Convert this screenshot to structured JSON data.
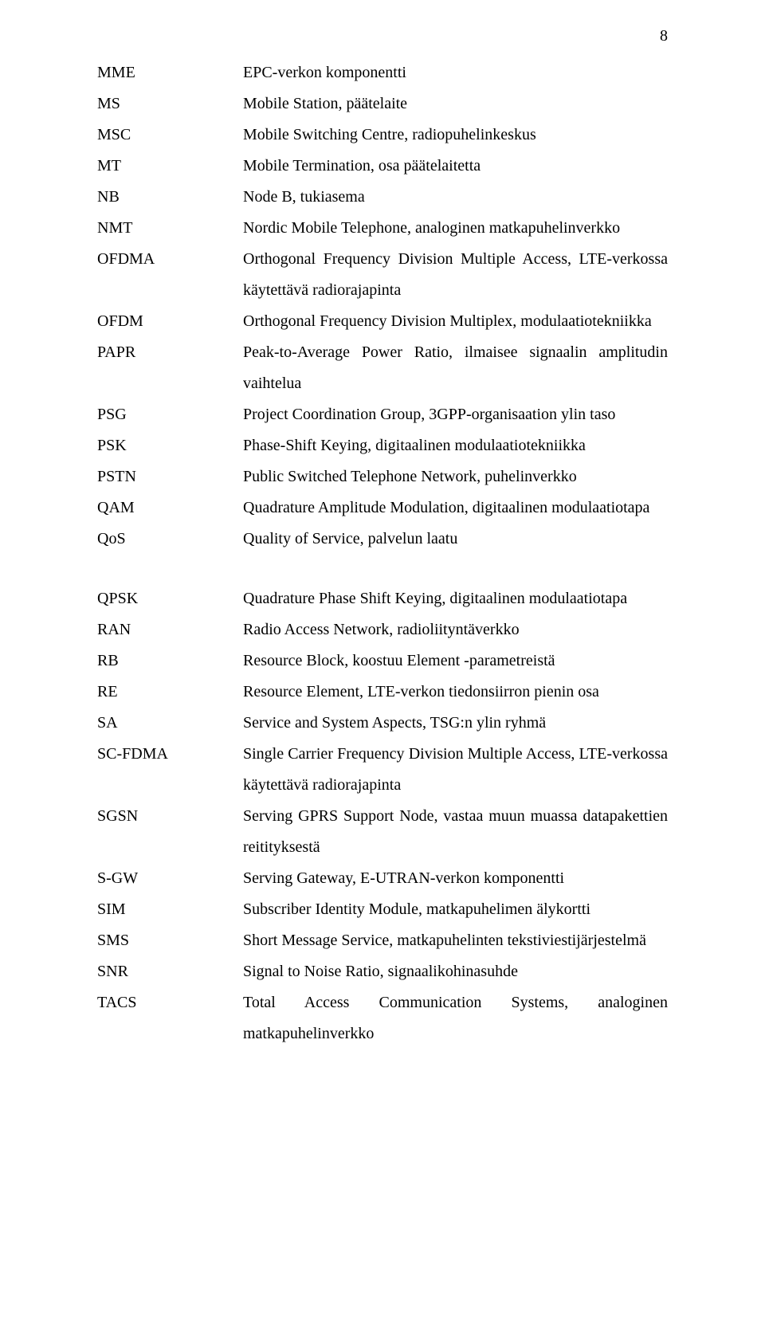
{
  "pageNumber": "8",
  "group1": [
    {
      "abbr": "MME",
      "def": "EPC-verkon komponentti",
      "single": true
    },
    {
      "abbr": "MS",
      "def": "Mobile Station, päätelaite",
      "single": true
    },
    {
      "abbr": "MSC",
      "def": "Mobile Switching Centre, radiopuhelinkeskus",
      "single": true
    },
    {
      "abbr": "MT",
      "def": "Mobile Termination, osa päätelaitetta",
      "single": true
    },
    {
      "abbr": "NB",
      "def": "Node B, tukiasema",
      "single": true
    },
    {
      "abbr": "NMT",
      "def": "Nordic Mobile Telephone, analoginen matkapuhelinverkko",
      "single": true
    },
    {
      "abbr": "OFDMA",
      "def": "Orthogonal Frequency Division Multiple Access, LTE-verkossa käytettävä radiorajapinta",
      "single": false
    },
    {
      "abbr": "OFDM",
      "def": "Orthogonal Frequency Division Multiplex, modulaatiotekniikka",
      "single": false
    },
    {
      "abbr": "PAPR",
      "def": "Peak-to-Average Power Ratio, ilmaisee signaalin amplitudin vaihtelua",
      "single": false
    },
    {
      "abbr": "PSG",
      "def": "Project Coordination Group, 3GPP-organisaation ylin taso",
      "single": true
    },
    {
      "abbr": "PSK",
      "def": "Phase-Shift Keying, digitaalinen modulaatiotekniikka",
      "single": true
    },
    {
      "abbr": "PSTN",
      "def": "Public Switched Telephone Network, puhelinverkko",
      "single": true
    },
    {
      "abbr": "QAM",
      "def": "Quadrature Amplitude Modulation, digitaalinen modulaatiotapa",
      "single": false
    },
    {
      "abbr": "QoS",
      "def": "Quality of Service, palvelun laatu",
      "single": true
    }
  ],
  "group2": [
    {
      "abbr": "QPSK",
      "def": "Quadrature Phase Shift Keying, digitaalinen modulaatiotapa",
      "single": true
    },
    {
      "abbr": "RAN",
      "def": "Radio Access Network, radioliityntäverkko",
      "single": true
    },
    {
      "abbr": "RB",
      "def": "Resource Block, koostuu Element -parametreistä",
      "single": true
    },
    {
      "abbr": "RE",
      "def": "Resource Element, LTE-verkon tiedonsiirron pienin osa",
      "single": true
    },
    {
      "abbr": "SA",
      "def": "Service and System Aspects, TSG:n ylin ryhmä",
      "single": true
    },
    {
      "abbr": "SC-FDMA",
      "def": "Single Carrier Frequency Division Multiple Access, LTE-verkossa käytettävä radiorajapinta",
      "single": false
    },
    {
      "abbr": "SGSN",
      "def": "Serving GPRS Support Node, vastaa muun muassa datapakettien reitityksestä",
      "single": false
    },
    {
      "abbr": "S-GW",
      "def": "Serving Gateway, E-UTRAN-verkon komponentti",
      "single": true
    },
    {
      "abbr": "SIM",
      "def": "Subscriber Identity Module, matkapuhelimen älykortti",
      "single": true
    },
    {
      "abbr": "SMS",
      "def": "Short Message Service, matkapuhelinten tekstiviestijärjestelmä",
      "single": false
    },
    {
      "abbr": "SNR",
      "def": "Signal to Noise Ratio, signaalikohinasuhde",
      "single": true
    },
    {
      "abbr": "TACS",
      "def": "Total Access Communication Systems, analoginen matkapuhelinverkko",
      "single": false
    }
  ]
}
